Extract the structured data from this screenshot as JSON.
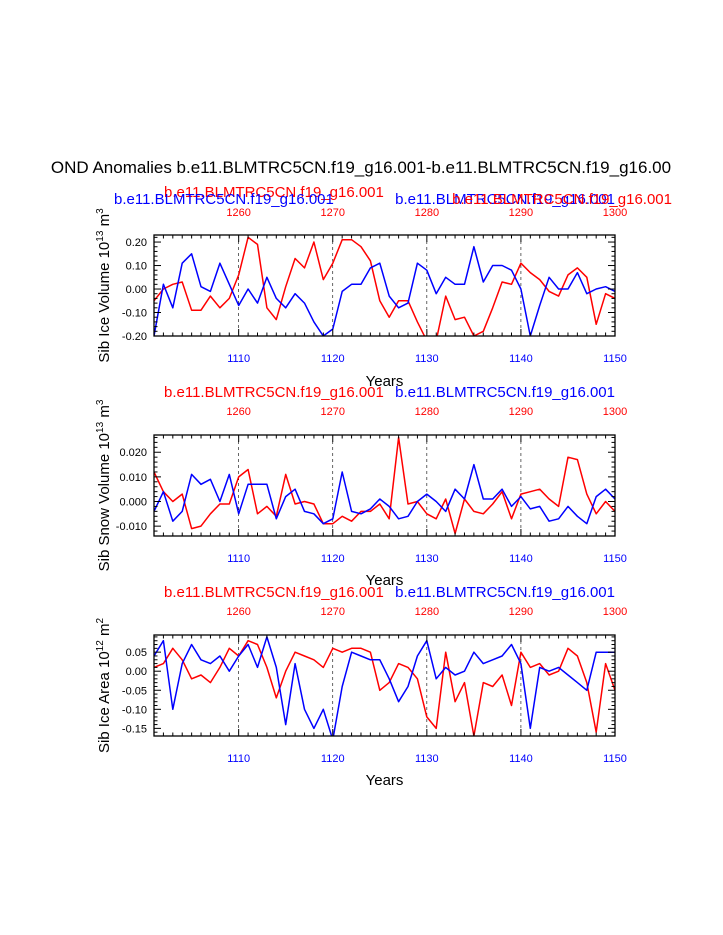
{
  "main_title": "OND Anomalies b.e11.BLMTRC5CN.f19_g16.001-b.e11.BLMTRC5CN.f19_g16.00",
  "colors": {
    "case_a": "#ff0000",
    "case_b": "#0000ff",
    "axis": "#000000"
  },
  "chart_data": [
    {
      "type": "line",
      "title_left": "b.e11.BLMTRC5CN.f19_g16.001",
      "title_right": "b.e11.BLMTRC5CN.f19_g16.001",
      "overlap_left": "b.e11.BLMTRC5CN.f19_g16.001",
      "overlap_right": "b.e11.BLMTRC5CN.f19_g16.001",
      "ylabel": "Sib Ice Volume 10",
      "ylabel_exp": "13",
      "ylabel_unit": " m",
      "ylabel_unit_exp": "3",
      "xlabel": "Years",
      "xlim": [
        1101,
        1150
      ],
      "top_xlim": [
        1251,
        1300
      ],
      "ylim": [
        -0.2,
        0.23
      ],
      "yticks": [
        -0.2,
        -0.1,
        0.0,
        0.1,
        0.2
      ],
      "ytick_labels": [
        "-0.20",
        "-0.10",
        "0.00",
        "0.10",
        "0.20"
      ],
      "xticks": [
        1110,
        1120,
        1130,
        1140,
        1150
      ],
      "xtick_labels": [
        "1110",
        "1120",
        "1130",
        "1140",
        "1150"
      ],
      "top_ticks": [
        1260,
        1270,
        1280,
        1290,
        1300
      ],
      "top_tick_labels": [
        "1260",
        "1270",
        "1280",
        "1290",
        "1300"
      ],
      "x": [
        1101,
        1102,
        1103,
        1104,
        1105,
        1106,
        1107,
        1108,
        1109,
        1110,
        1111,
        1112,
        1113,
        1114,
        1115,
        1116,
        1117,
        1118,
        1119,
        1120,
        1121,
        1122,
        1123,
        1124,
        1125,
        1126,
        1127,
        1128,
        1129,
        1130,
        1131,
        1132,
        1133,
        1134,
        1135,
        1136,
        1137,
        1138,
        1139,
        1140,
        1141,
        1142,
        1143,
        1144,
        1145,
        1146,
        1147,
        1148,
        1149,
        1150
      ],
      "series": [
        {
          "name": "b.e11.BLMTRC5CN.f19_g16.001",
          "axis": "top",
          "color": "#ff0000",
          "values": [
            -0.05,
            0.0,
            0.02,
            0.03,
            -0.09,
            -0.09,
            -0.03,
            -0.08,
            -0.04,
            0.06,
            0.22,
            0.19,
            -0.08,
            -0.13,
            0.01,
            0.13,
            0.09,
            0.2,
            0.04,
            0.11,
            0.21,
            0.21,
            0.18,
            0.12,
            -0.05,
            -0.12,
            -0.05,
            -0.05,
            -0.14,
            -0.22,
            -0.22,
            -0.03,
            -0.13,
            -0.12,
            -0.2,
            -0.18,
            -0.08,
            0.03,
            0.02,
            0.11,
            0.07,
            0.04,
            -0.01,
            -0.03,
            0.06,
            0.09,
            0.05,
            -0.15,
            -0.02,
            -0.04
          ]
        },
        {
          "name": "b.e11.BLMTRC5CN.f19_g16.001",
          "axis": "bottom",
          "color": "#0000ff",
          "values": [
            -0.2,
            0.02,
            -0.08,
            0.11,
            0.15,
            0.01,
            -0.01,
            0.11,
            0.02,
            -0.07,
            0.0,
            -0.06,
            0.05,
            -0.04,
            -0.08,
            -0.02,
            -0.06,
            -0.14,
            -0.2,
            -0.17,
            -0.01,
            0.02,
            0.02,
            0.09,
            0.11,
            -0.03,
            -0.08,
            -0.06,
            0.11,
            0.08,
            -0.02,
            0.05,
            0.02,
            0.02,
            0.18,
            0.03,
            0.1,
            0.1,
            0.08,
            0.0,
            -0.2,
            -0.07,
            0.05,
            0.0,
            0.0,
            0.07,
            -0.02,
            0.0,
            0.01,
            -0.01
          ]
        }
      ]
    },
    {
      "type": "line",
      "title_left": "b.e11.BLMTRC5CN.f19_g16.001",
      "title_right": "b.e11.BLMTRC5CN.f19_g16.001",
      "ylabel": "Sib Snow Volume 10",
      "ylabel_exp": "13",
      "ylabel_unit": " m",
      "ylabel_unit_exp": "3",
      "xlabel": "Years",
      "xlim": [
        1101,
        1150
      ],
      "top_xlim": [
        1251,
        1300
      ],
      "ylim": [
        -0.014,
        0.027
      ],
      "yticks": [
        -0.01,
        0.0,
        0.01,
        0.02
      ],
      "ytick_labels": [
        "-0.010",
        "0.000",
        "0.010",
        "0.020"
      ],
      "xticks": [
        1110,
        1120,
        1130,
        1140,
        1150
      ],
      "xtick_labels": [
        "1110",
        "1120",
        "1130",
        "1140",
        "1150"
      ],
      "top_ticks": [
        1260,
        1270,
        1280,
        1290,
        1300
      ],
      "top_tick_labels": [
        "1260",
        "1270",
        "1280",
        "1290",
        "1300"
      ],
      "x": [
        1101,
        1102,
        1103,
        1104,
        1105,
        1106,
        1107,
        1108,
        1109,
        1110,
        1111,
        1112,
        1113,
        1114,
        1115,
        1116,
        1117,
        1118,
        1119,
        1120,
        1121,
        1122,
        1123,
        1124,
        1125,
        1126,
        1127,
        1128,
        1129,
        1130,
        1131,
        1132,
        1133,
        1134,
        1135,
        1136,
        1137,
        1138,
        1139,
        1140,
        1141,
        1142,
        1143,
        1144,
        1145,
        1146,
        1147,
        1148,
        1149,
        1150
      ],
      "series": [
        {
          "name": "b.e11.BLMTRC5CN.f19_g16.001",
          "axis": "top",
          "color": "#ff0000",
          "values": [
            0.012,
            0.004,
            0.0,
            0.003,
            -0.011,
            -0.01,
            -0.005,
            -0.001,
            -0.001,
            0.01,
            0.013,
            -0.005,
            -0.002,
            -0.006,
            0.011,
            -0.001,
            0.0,
            -0.001,
            -0.009,
            -0.009,
            -0.006,
            -0.008,
            -0.004,
            -0.004,
            -0.001,
            -0.007,
            0.026,
            -0.001,
            0.0,
            -0.005,
            -0.007,
            0.001,
            -0.013,
            0.001,
            -0.004,
            -0.005,
            -0.001,
            0.004,
            -0.007,
            0.003,
            0.004,
            0.005,
            0.001,
            -0.002,
            0.018,
            0.017,
            0.003,
            -0.005,
            0.0,
            -0.004
          ]
        },
        {
          "name": "b.e11.BLMTRC5CN.f19_g16.001",
          "axis": "bottom",
          "color": "#0000ff",
          "values": [
            -0.004,
            0.004,
            -0.008,
            -0.004,
            0.011,
            0.007,
            0.009,
            0.0,
            0.011,
            -0.005,
            0.007,
            0.007,
            0.007,
            -0.007,
            0.002,
            0.005,
            -0.004,
            -0.005,
            -0.009,
            -0.007,
            0.012,
            -0.004,
            -0.005,
            -0.003,
            0.001,
            -0.002,
            -0.007,
            -0.006,
            0.0,
            0.003,
            0.0,
            -0.004,
            0.005,
            0.001,
            0.015,
            0.001,
            0.001,
            0.005,
            -0.002,
            0.002,
            -0.003,
            -0.002,
            -0.008,
            -0.007,
            -0.002,
            -0.006,
            -0.009,
            0.002,
            0.005,
            0.001
          ]
        }
      ]
    },
    {
      "type": "line",
      "title_left": "b.e11.BLMTRC5CN.f19_g16.001",
      "title_right": "b.e11.BLMTRC5CN.f19_g16.001",
      "ylabel": "Sib Ice Area 10",
      "ylabel_exp": "12",
      "ylabel_unit": " m",
      "ylabel_unit_exp": "2",
      "xlabel": "Years",
      "xlim": [
        1101,
        1150
      ],
      "top_xlim": [
        1251,
        1300
      ],
      "ylim": [
        -0.17,
        0.095
      ],
      "yticks": [
        -0.15,
        -0.1,
        -0.05,
        0.0,
        0.05
      ],
      "ytick_labels": [
        "-0.15",
        "-0.10",
        "-0.05",
        "0.00",
        "0.05"
      ],
      "xticks": [
        1110,
        1120,
        1130,
        1140,
        1150
      ],
      "xtick_labels": [
        "1110",
        "1120",
        "1130",
        "1140",
        "1150"
      ],
      "top_ticks": [
        1260,
        1270,
        1280,
        1290,
        1300
      ],
      "top_tick_labels": [
        "1260",
        "1270",
        "1280",
        "1290",
        "1300"
      ],
      "x": [
        1101,
        1102,
        1103,
        1104,
        1105,
        1106,
        1107,
        1108,
        1109,
        1110,
        1111,
        1112,
        1113,
        1114,
        1115,
        1116,
        1117,
        1118,
        1119,
        1120,
        1121,
        1122,
        1123,
        1124,
        1125,
        1126,
        1127,
        1128,
        1129,
        1130,
        1131,
        1132,
        1133,
        1134,
        1135,
        1136,
        1137,
        1138,
        1139,
        1140,
        1141,
        1142,
        1143,
        1144,
        1145,
        1146,
        1147,
        1148,
        1149,
        1150
      ],
      "series": [
        {
          "name": "b.e11.BLMTRC5CN.f19_g16.001",
          "axis": "top",
          "color": "#ff0000",
          "values": [
            0.01,
            0.02,
            0.06,
            0.03,
            -0.02,
            -0.01,
            -0.03,
            0.01,
            0.06,
            0.04,
            0.08,
            0.07,
            0.01,
            -0.07,
            0.0,
            0.05,
            0.04,
            0.03,
            0.01,
            0.06,
            0.05,
            0.06,
            0.06,
            0.05,
            -0.05,
            -0.03,
            0.02,
            0.01,
            -0.02,
            -0.12,
            -0.15,
            0.05,
            -0.08,
            -0.03,
            -0.17,
            -0.03,
            -0.04,
            -0.01,
            -0.09,
            0.05,
            0.01,
            0.02,
            -0.01,
            0.0,
            0.06,
            0.04,
            -0.03,
            -0.16,
            0.02,
            -0.05
          ]
        },
        {
          "name": "b.e11.BLMTRC5CN.f19_g16.001",
          "axis": "bottom",
          "color": "#0000ff",
          "values": [
            0.04,
            0.08,
            -0.1,
            0.02,
            0.07,
            0.03,
            0.02,
            0.04,
            0.0,
            0.04,
            0.07,
            0.01,
            0.09,
            0.01,
            -0.14,
            0.02,
            -0.1,
            -0.15,
            -0.1,
            -0.18,
            -0.04,
            0.05,
            0.04,
            0.03,
            0.03,
            -0.02,
            -0.08,
            -0.04,
            0.04,
            0.08,
            -0.02,
            0.01,
            -0.01,
            0.0,
            0.05,
            0.02,
            0.03,
            0.04,
            0.07,
            0.02,
            -0.15,
            0.01,
            0.0,
            0.01,
            -0.01,
            -0.03,
            -0.05,
            0.05,
            0.05,
            0.05
          ]
        }
      ]
    }
  ]
}
